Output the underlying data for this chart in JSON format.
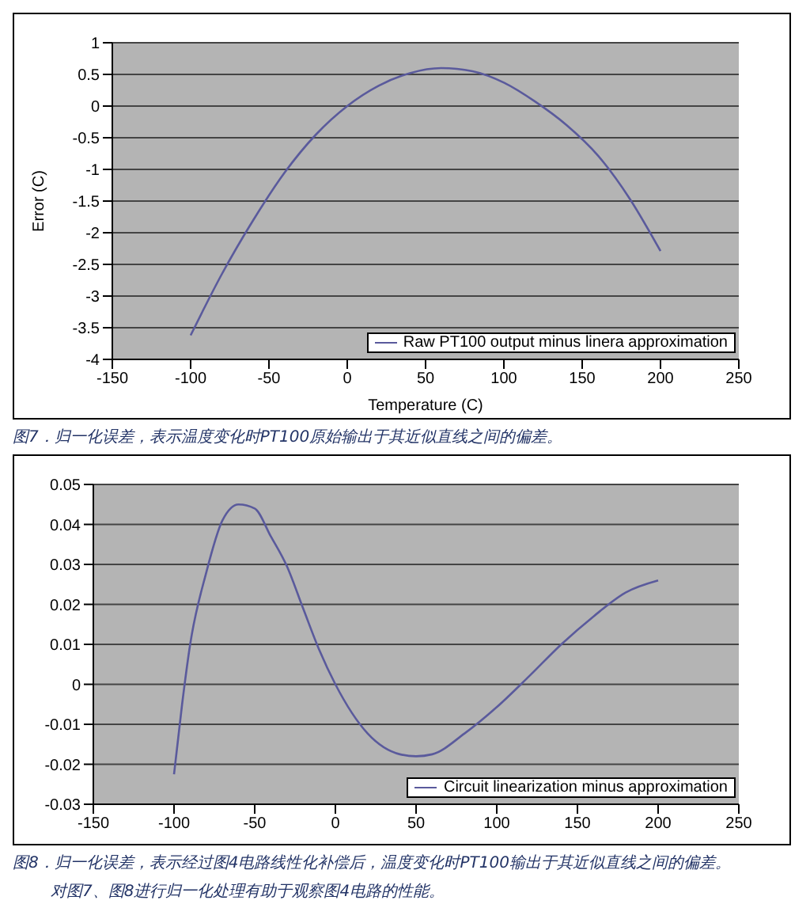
{
  "chart_data": [
    {
      "type": "line",
      "xlabel": "Temperature (C)",
      "ylabel": "Error (C)",
      "x": [
        -100,
        -80,
        -60,
        -40,
        -20,
        0,
        20,
        40,
        60,
        80,
        100,
        120,
        140,
        160,
        180,
        200
      ],
      "series": [
        {
          "name": "Raw PT100 output minus linera approximation",
          "color": "#5a5a9c",
          "values": [
            -3.62,
            -2.65,
            -1.8,
            -1.05,
            -0.45,
            0,
            0.32,
            0.52,
            0.6,
            0.55,
            0.37,
            0.07,
            -0.3,
            -0.78,
            -1.45,
            -2.29
          ]
        }
      ],
      "xlim": [
        -150,
        250
      ],
      "xticks": [
        -150,
        -100,
        -50,
        0,
        50,
        100,
        150,
        200,
        250
      ],
      "ylim": [
        -4,
        1
      ],
      "yticks": [
        -4,
        -3.5,
        -3,
        -2.5,
        -2,
        -1.5,
        -1,
        -0.5,
        0,
        0.5,
        1
      ],
      "grid": "y",
      "legend": "bottom right",
      "marker": "none",
      "annotations": [
        "图7．归一化误差，表示温度变化时PT100原始输出于其近似直线之间的偏差。"
      ]
    },
    {
      "type": "line",
      "x": [
        -100,
        -95,
        -90,
        -80,
        -70,
        -60,
        -50,
        -40,
        -30,
        -20,
        -10,
        0,
        20,
        40,
        50,
        60,
        80,
        100,
        120,
        140,
        160,
        180,
        200
      ],
      "series": [
        {
          "name": "Circuit linearization minus approximation",
          "color": "#5a5a9c",
          "values": [
            -0.0225,
            -0.005,
            0.01,
            0.028,
            0.041,
            0.045,
            0.044,
            0.037,
            0.0295,
            0.019,
            0.0086,
            0,
            -0.0123,
            -0.0175,
            -0.018,
            -0.0175,
            -0.0123,
            -0.0057,
            0.002,
            0.01,
            0.017,
            0.023,
            0.026
          ]
        }
      ],
      "xlim": [
        -150,
        250
      ],
      "xticks": [
        -150,
        -100,
        -50,
        0,
        50,
        100,
        150,
        200,
        250
      ],
      "ylim": [
        -0.03,
        0.05
      ],
      "yticks": [
        -0.03,
        -0.02,
        -0.01,
        0,
        0.01,
        0.02,
        0.03,
        0.04,
        0.05
      ],
      "grid": "y",
      "legend": "bottom right",
      "marker": "none",
      "annotations": [
        "图8．归一化误差，表示经过图4电路线性化补偿后，温度变化时PT100输出于其近似直线之间的偏差。",
        "对图7、图8进行归一化处理有助于观察图4电路的性能。"
      ]
    }
  ]
}
